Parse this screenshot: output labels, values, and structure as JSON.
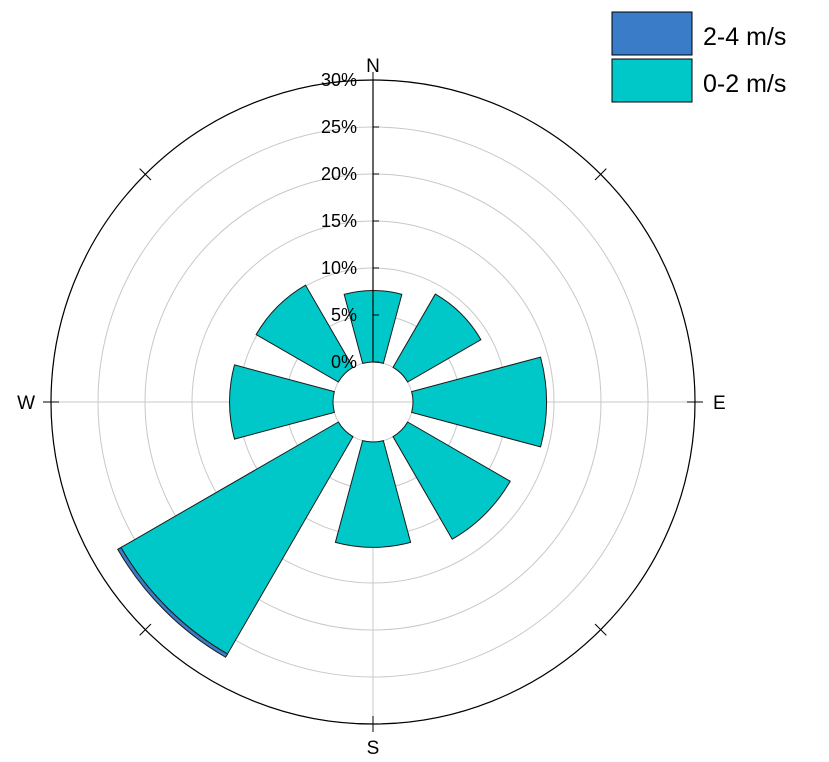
{
  "chart_data": {
    "type": "polar-bar",
    "directions": [
      "N",
      "NE",
      "E",
      "SE",
      "S",
      "SW",
      "W",
      "NW"
    ],
    "angles_deg": [
      0,
      45,
      90,
      135,
      180,
      225,
      270,
      315
    ],
    "radial_ticks": [
      "0%",
      "5%",
      "10%",
      "15%",
      "20%",
      "25%",
      "30%"
    ],
    "radial_values": [
      0,
      5,
      10,
      15,
      20,
      25,
      30
    ],
    "r_range": [
      0,
      30
    ],
    "compass_labels": [
      "N",
      "E",
      "S",
      "W"
    ],
    "series": [
      {
        "name": "0-2 m/s",
        "color": "#00c8c8",
        "values": [
          7.6,
          9.0,
          14.2,
          12.6,
          11.2,
          26.7,
          11.0,
          10.1
        ]
      },
      {
        "name": "2-4 m/s",
        "color": "#3a7cc8",
        "values": [
          0,
          0,
          0,
          0,
          0,
          0.4,
          0,
          0
        ]
      }
    ],
    "legend": {
      "position": "top-right",
      "entries": [
        {
          "label": "2-4 m/s",
          "color": "#3a7cc8"
        },
        {
          "label": "0-2 m/s",
          "color": "#00c8c8"
        }
      ]
    },
    "grid": true
  }
}
